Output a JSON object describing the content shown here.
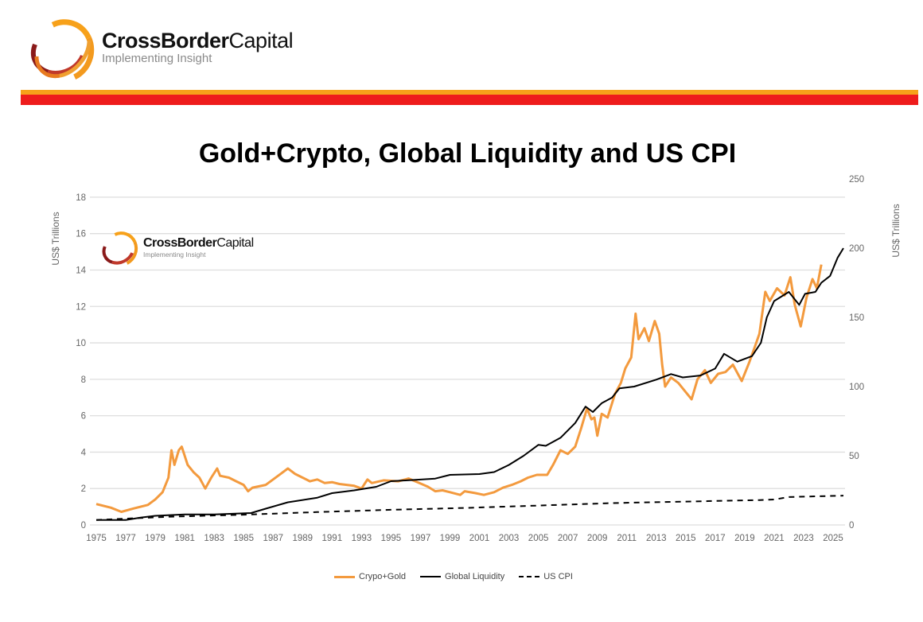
{
  "header": {
    "brand_bold": "CrossBorder",
    "brand_regular": "Capital",
    "tagline": "Implementing Insight"
  },
  "watermark": {
    "brand_bold": "CrossBorder",
    "brand_regular": "Capital",
    "tagline": "Implementing Insight"
  },
  "colors": {
    "stripe_orange": "#f7a11a",
    "stripe_red": "#ee1c1c",
    "crypto_gold": "#f39a3e",
    "liquidity": "#000000",
    "cpi": "#000000"
  },
  "chart_data": {
    "type": "line",
    "title": "Gold+Crypto, Global Liquidity and US CPI",
    "ylabel_left": "US$ Trillions",
    "ylabel_right": "US$ Trillions",
    "ylim_left": [
      0,
      19
    ],
    "ylim_right": [
      0,
      250
    ],
    "xlim": [
      1975,
      2026
    ],
    "grid": true,
    "legend_position": "bottom",
    "x_ticks": [
      "1975",
      "1977",
      "1979",
      "1981",
      "1983",
      "1985",
      "1987",
      "1989",
      "1991",
      "1993",
      "1995",
      "1997",
      "1999",
      "2001",
      "2003",
      "2005",
      "2007",
      "2009",
      "2011",
      "2013",
      "2015",
      "2017",
      "2019",
      "2021",
      "2023",
      "2025"
    ],
    "y_ticks_left": [
      "0",
      "2",
      "4",
      "6",
      "8",
      "10",
      "12",
      "14",
      "16",
      "18"
    ],
    "y_ticks_right": [
      "0",
      "50",
      "100",
      "150",
      "200",
      "250"
    ],
    "series": [
      {
        "name": "Crypo+Gold",
        "axis": "left",
        "style": "solid",
        "points": [
          [
            1975,
            1.15
          ],
          [
            1976,
            0.95
          ],
          [
            1976.7,
            0.72
          ],
          [
            1977.5,
            0.9
          ],
          [
            1978.5,
            1.1
          ],
          [
            1979,
            1.4
          ],
          [
            1979.5,
            1.8
          ],
          [
            1979.9,
            2.6
          ],
          [
            1980.1,
            4.1
          ],
          [
            1980.3,
            3.3
          ],
          [
            1980.6,
            4.1
          ],
          [
            1980.8,
            4.3
          ],
          [
            1981.2,
            3.3
          ],
          [
            1981.6,
            2.9
          ],
          [
            1982,
            2.6
          ],
          [
            1982.4,
            2.0
          ],
          [
            1982.8,
            2.6
          ],
          [
            1983.2,
            3.1
          ],
          [
            1983.4,
            2.7
          ],
          [
            1984,
            2.6
          ],
          [
            1984.5,
            2.4
          ],
          [
            1985,
            2.2
          ],
          [
            1985.3,
            1.85
          ],
          [
            1985.6,
            2.05
          ],
          [
            1986.5,
            2.2
          ],
          [
            1987,
            2.5
          ],
          [
            1987.5,
            2.8
          ],
          [
            1988,
            3.1
          ],
          [
            1988.5,
            2.8
          ],
          [
            1989,
            2.6
          ],
          [
            1989.5,
            2.4
          ],
          [
            1990,
            2.5
          ],
          [
            1990.5,
            2.3
          ],
          [
            1991,
            2.35
          ],
          [
            1991.5,
            2.25
          ],
          [
            1992,
            2.2
          ],
          [
            1992.5,
            2.15
          ],
          [
            1993,
            2.0
          ],
          [
            1993.4,
            2.5
          ],
          [
            1993.7,
            2.3
          ],
          [
            1994.5,
            2.45
          ],
          [
            1995.5,
            2.4
          ],
          [
            1996.2,
            2.55
          ],
          [
            1996.8,
            2.35
          ],
          [
            1997.5,
            2.1
          ],
          [
            1998,
            1.85
          ],
          [
            1998.5,
            1.9
          ],
          [
            1999,
            1.8
          ],
          [
            1999.7,
            1.65
          ],
          [
            2000,
            1.85
          ],
          [
            2000.7,
            1.75
          ],
          [
            2001.3,
            1.65
          ],
          [
            2002,
            1.8
          ],
          [
            2002.6,
            2.05
          ],
          [
            2003.2,
            2.2
          ],
          [
            2003.8,
            2.4
          ],
          [
            2004.3,
            2.6
          ],
          [
            2004.9,
            2.75
          ],
          [
            2005.6,
            2.75
          ],
          [
            2006,
            3.3
          ],
          [
            2006.5,
            4.1
          ],
          [
            2007,
            3.9
          ],
          [
            2007.5,
            4.3
          ],
          [
            2007.9,
            5.3
          ],
          [
            2008.3,
            6.4
          ],
          [
            2008.6,
            5.8
          ],
          [
            2008.8,
            5.9
          ],
          [
            2009,
            4.9
          ],
          [
            2009.3,
            6.1
          ],
          [
            2009.7,
            5.9
          ],
          [
            2010.2,
            7.2
          ],
          [
            2010.6,
            7.8
          ],
          [
            2010.9,
            8.6
          ],
          [
            2011.3,
            9.2
          ],
          [
            2011.6,
            11.6
          ],
          [
            2011.8,
            10.2
          ],
          [
            2012.2,
            10.8
          ],
          [
            2012.5,
            10.1
          ],
          [
            2012.9,
            11.2
          ],
          [
            2013.2,
            10.5
          ],
          [
            2013.4,
            8.8
          ],
          [
            2013.6,
            7.6
          ],
          [
            2014,
            8.1
          ],
          [
            2014.5,
            7.8
          ],
          [
            2015,
            7.3
          ],
          [
            2015.4,
            6.9
          ],
          [
            2015.8,
            8.0
          ],
          [
            2016.3,
            8.5
          ],
          [
            2016.7,
            7.8
          ],
          [
            2017.2,
            8.3
          ],
          [
            2017.7,
            8.4
          ],
          [
            2018.2,
            8.8
          ],
          [
            2018.8,
            7.9
          ],
          [
            2019.3,
            8.9
          ],
          [
            2019.7,
            9.8
          ],
          [
            2020,
            10.5
          ],
          [
            2020.4,
            12.8
          ],
          [
            2020.7,
            12.3
          ],
          [
            2021.2,
            13.0
          ],
          [
            2021.7,
            12.6
          ],
          [
            2022.1,
            13.6
          ],
          [
            2022.4,
            12.1
          ],
          [
            2022.8,
            10.9
          ],
          [
            2023.2,
            12.5
          ],
          [
            2023.6,
            13.5
          ],
          [
            2023.9,
            13.0
          ],
          [
            2024.2,
            14.3
          ]
        ]
      },
      {
        "name": "Global Liquidity",
        "axis": "right",
        "style": "solid",
        "points": [
          [
            1975,
            3.6
          ],
          [
            1977,
            3.6
          ],
          [
            1978,
            5.3
          ],
          [
            1979,
            6.6
          ],
          [
            1981,
            7.6
          ],
          [
            1983,
            7.6
          ],
          [
            1985.5,
            8.6
          ],
          [
            1986.5,
            11.8
          ],
          [
            1988,
            16.4
          ],
          [
            1990,
            19.7
          ],
          [
            1991,
            23
          ],
          [
            1992.5,
            25
          ],
          [
            1994,
            27.6
          ],
          [
            1995,
            31.6
          ],
          [
            1996,
            32.2
          ],
          [
            1998,
            33.5
          ],
          [
            1999,
            36.2
          ],
          [
            2001,
            36.8
          ],
          [
            2002,
            38.2
          ],
          [
            2003,
            43.4
          ],
          [
            2004,
            50
          ],
          [
            2005,
            57.9
          ],
          [
            2005.5,
            57.2
          ],
          [
            2006.5,
            63
          ],
          [
            2007.5,
            73.7
          ],
          [
            2008.2,
            85.5
          ],
          [
            2008.7,
            81.6
          ],
          [
            2009.3,
            88
          ],
          [
            2010,
            92
          ],
          [
            2010.5,
            98.7
          ],
          [
            2011.5,
            100
          ],
          [
            2013,
            105
          ],
          [
            2014,
            109
          ],
          [
            2014.8,
            106.6
          ],
          [
            2016,
            108
          ],
          [
            2017,
            113
          ],
          [
            2017.6,
            123.7
          ],
          [
            2018.5,
            118
          ],
          [
            2019.5,
            122
          ],
          [
            2020.1,
            131.6
          ],
          [
            2020.5,
            150
          ],
          [
            2021,
            161.8
          ],
          [
            2022,
            168.4
          ],
          [
            2022.7,
            159
          ],
          [
            2023.1,
            167
          ],
          [
            2023.8,
            168.4
          ],
          [
            2024.2,
            175
          ],
          [
            2024.8,
            180
          ],
          [
            2025.3,
            193
          ],
          [
            2025.7,
            200
          ]
        ]
      },
      {
        "name": "US CPI",
        "axis": "right",
        "style": "dashed",
        "points": [
          [
            1975,
            3.6
          ],
          [
            1980,
            6
          ],
          [
            1985,
            7.4
          ],
          [
            1990,
            9.3
          ],
          [
            1995,
            11
          ],
          [
            2000,
            12.3
          ],
          [
            2005,
            14
          ],
          [
            2010,
            15.8
          ],
          [
            2015,
            16.9
          ],
          [
            2020,
            18
          ],
          [
            2021,
            18.4
          ],
          [
            2022,
            20.2
          ],
          [
            2025.7,
            21.2
          ]
        ]
      }
    ]
  }
}
